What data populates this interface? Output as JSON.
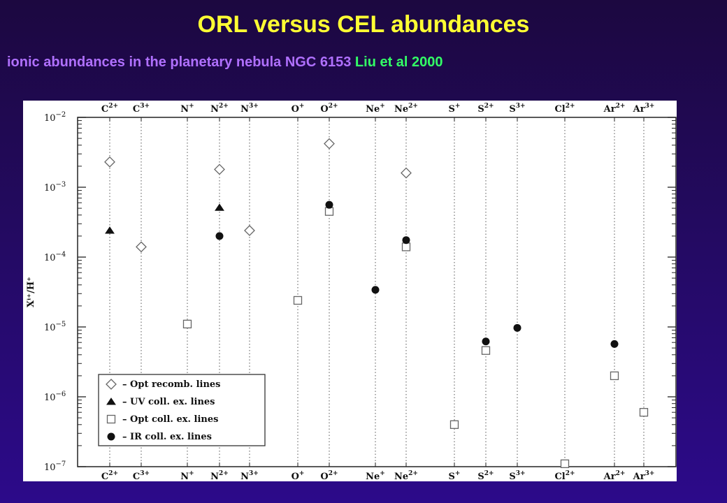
{
  "title": "ORL versus CEL abundances",
  "subtitle": {
    "text": "ionic abundances in the planetary nebula NGC 6153",
    "citation": "Liu et al 2000"
  },
  "colors": {
    "title": "#ffff33",
    "subtitle": "#b070ff",
    "citation": "#33ff66",
    "background": "#240a64"
  },
  "chart_data": {
    "type": "scatter",
    "title": "",
    "xlabel": "",
    "ylabel": "Xⁱ⁺/H⁺",
    "yscale": "log",
    "ylim": [
      1e-07,
      0.01
    ],
    "y_ticks": [
      {
        "base": "10",
        "exp": "−2"
      },
      {
        "base": "10",
        "exp": "−3"
      },
      {
        "base": "10",
        "exp": "−4"
      },
      {
        "base": "10",
        "exp": "−5"
      },
      {
        "base": "10",
        "exp": "−6"
      },
      {
        "base": "10",
        "exp": "−7"
      }
    ],
    "categories": [
      {
        "el": "C",
        "ion": "2+"
      },
      {
        "el": "C",
        "ion": "3+"
      },
      {
        "el": "N",
        "ion": "+"
      },
      {
        "el": "N",
        "ion": "2+"
      },
      {
        "el": "N",
        "ion": "3+"
      },
      {
        "el": "O",
        "ion": "+"
      },
      {
        "el": "O",
        "ion": "2+"
      },
      {
        "el": "Ne",
        "ion": "+"
      },
      {
        "el": "Ne",
        "ion": "2+"
      },
      {
        "el": "S",
        "ion": "+"
      },
      {
        "el": "S",
        "ion": "2+"
      },
      {
        "el": "S",
        "ion": "3+"
      },
      {
        "el": "Cl",
        "ion": "2+"
      },
      {
        "el": "Ar",
        "ion": "2+"
      },
      {
        "el": "Ar",
        "ion": "3+"
      }
    ],
    "legend_position": "bottom-left",
    "series": [
      {
        "name": "– Opt recomb. lines",
        "marker": "diamond",
        "points": [
          {
            "category": 0,
            "y": 0.0023
          },
          {
            "category": 1,
            "y": 0.00014
          },
          {
            "category": 3,
            "y": 0.0018
          },
          {
            "category": 4,
            "y": 0.00024
          },
          {
            "category": 6,
            "y": 0.0042
          },
          {
            "category": 8,
            "y": 0.0016
          }
        ]
      },
      {
        "name": "– UV coll. ex. lines",
        "marker": "triangle",
        "points": [
          {
            "category": 0,
            "y": 0.00024
          },
          {
            "category": 3,
            "y": 0.00051
          }
        ]
      },
      {
        "name": "– Opt coll. ex. lines",
        "marker": "square",
        "points": [
          {
            "category": 2,
            "y": 1.1e-05
          },
          {
            "category": 5,
            "y": 2.4e-05
          },
          {
            "category": 6,
            "y": 0.00045
          },
          {
            "category": 8,
            "y": 0.00014
          },
          {
            "category": 9,
            "y": 4e-07
          },
          {
            "category": 10,
            "y": 4.6e-06
          },
          {
            "category": 12,
            "y": 1.1e-07
          },
          {
            "category": 13,
            "y": 2e-06
          },
          {
            "category": 14,
            "y": 6e-07
          }
        ]
      },
      {
        "name": "– IR coll. ex. lines",
        "marker": "circle",
        "points": [
          {
            "category": 3,
            "y": 0.0002
          },
          {
            "category": 6,
            "y": 0.00056
          },
          {
            "category": 7,
            "y": 3.4e-05
          },
          {
            "category": 8,
            "y": 0.000175
          },
          {
            "category": 10,
            "y": 6.2e-06
          },
          {
            "category": 11,
            "y": 9.7e-06
          },
          {
            "category": 13,
            "y": 5.7e-06
          }
        ]
      }
    ]
  }
}
